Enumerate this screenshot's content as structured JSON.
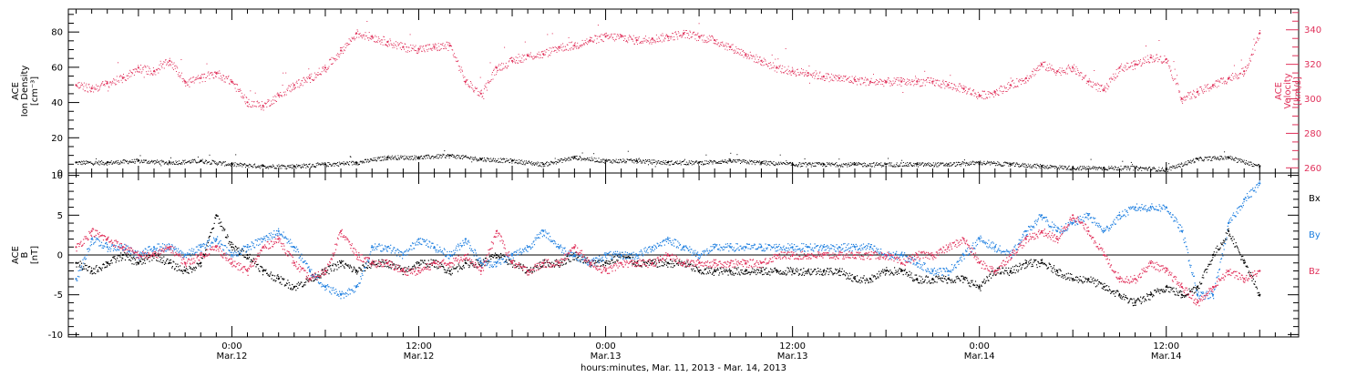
{
  "colors": {
    "axis": "#000000",
    "density": "#000000",
    "velocity": "#e0305a",
    "bx": "#000000",
    "by": "#1e7fe0",
    "bz": "#e0305a"
  },
  "time_axis": {
    "label": "hours:minutes, Mar. 11, 2013 - Mar. 14, 2013",
    "ticks": [
      {
        "hour": 24,
        "time": "0:00",
        "date": "Mar.12"
      },
      {
        "hour": 36,
        "time": "12:00",
        "date": "Mar.12"
      },
      {
        "hour": 48,
        "time": "0:00",
        "date": "Mar.13"
      },
      {
        "hour": 60,
        "time": "12:00",
        "date": "Mar.13"
      },
      {
        "hour": 72,
        "time": "0:00",
        "date": "Mar.14"
      },
      {
        "hour": 84,
        "time": "12:00",
        "date": "Mar.14"
      }
    ]
  },
  "chart_data": [
    {
      "type": "scatter",
      "panel": "top",
      "xlabel": "hours:minutes, Mar. 11, 2013 - Mar. 14, 2013",
      "xlim": [
        13.5,
        92.5
      ],
      "left_axis": {
        "label_lines": [
          "ACE",
          "Ion Density",
          "[cm⁻³]"
        ],
        "ylim": [
          0,
          93
        ],
        "ticks": [
          0,
          20,
          40,
          60,
          80
        ]
      },
      "right_axis": {
        "label_lines": [
          "ACE",
          "Velocity",
          "[km/s]"
        ],
        "ylim": [
          257,
          352
        ],
        "ticks": [
          260,
          280,
          300,
          320,
          340
        ]
      },
      "grid": false,
      "series": [
        {
          "name": "",
          "axis": "left",
          "key": "density",
          "x": [
            14,
            16,
            18,
            20,
            22,
            24,
            26,
            28,
            30,
            32,
            34,
            36,
            38,
            40,
            42,
            44,
            46,
            48,
            50,
            52,
            54,
            56,
            58,
            60,
            62,
            64,
            66,
            68,
            70,
            72,
            74,
            76,
            78,
            80,
            82,
            84,
            86,
            88,
            90
          ],
          "y": [
            6,
            6,
            7,
            6,
            7,
            5,
            4,
            4,
            5,
            6,
            9,
            9,
            10,
            8,
            7,
            5,
            9,
            7,
            7,
            6,
            6,
            7,
            6,
            5,
            5,
            5,
            5,
            5,
            5,
            6,
            5,
            4,
            3,
            3,
            3,
            2,
            8,
            9,
            4
          ]
        },
        {
          "name": "",
          "axis": "right",
          "key": "velocity",
          "x": [
            14,
            15,
            16,
            17,
            18,
            19,
            20,
            21,
            22,
            23,
            24,
            25,
            26,
            27,
            28,
            29,
            30,
            31,
            32,
            33,
            34,
            35,
            36,
            37,
            38,
            39,
            40,
            41,
            42,
            43,
            44,
            45,
            46,
            47,
            48,
            49,
            50,
            51,
            52,
            53,
            54,
            55,
            56,
            57,
            58,
            59,
            60,
            61,
            62,
            63,
            64,
            65,
            66,
            67,
            68,
            69,
            70,
            71,
            72,
            73,
            74,
            75,
            76,
            77,
            78,
            79,
            80,
            81,
            82,
            83,
            84,
            85,
            86,
            87,
            88,
            89,
            90
          ],
          "y": [
            308,
            306,
            309,
            312,
            318,
            316,
            322,
            310,
            312,
            315,
            310,
            298,
            296,
            302,
            308,
            312,
            318,
            328,
            338,
            336,
            333,
            330,
            329,
            330,
            331,
            310,
            303,
            318,
            322,
            325,
            326,
            330,
            331,
            334,
            336,
            336,
            334,
            335,
            336,
            338,
            336,
            334,
            330,
            326,
            322,
            318,
            316,
            315,
            313,
            312,
            311,
            310,
            310,
            310,
            310,
            310,
            308,
            306,
            302,
            304,
            308,
            312,
            320,
            316,
            318,
            310,
            305,
            318,
            320,
            324,
            323,
            300,
            304,
            308,
            312,
            316,
            338
          ]
        }
      ]
    },
    {
      "type": "scatter",
      "panel": "bottom",
      "xlabel": "hours:minutes, Mar. 11, 2013 - Mar. 14, 2013",
      "xlim": [
        13.5,
        92.5
      ],
      "yaxis": {
        "label_lines": [
          "ACE",
          "B",
          "[nT]"
        ],
        "ylim": [
          -10.3,
          10.3
        ],
        "ticks": [
          -10,
          -5,
          0,
          5,
          10
        ]
      },
      "zero_line": true,
      "grid": false,
      "legend": {
        "position": "right"
      },
      "series": [
        {
          "name": "Bx",
          "key": "bx",
          "x": [
            14,
            15,
            16,
            17,
            18,
            19,
            20,
            21,
            22,
            23,
            24,
            25,
            26,
            27,
            28,
            29,
            30,
            31,
            32,
            33,
            34,
            35,
            36,
            37,
            38,
            39,
            40,
            41,
            42,
            43,
            44,
            45,
            46,
            47,
            48,
            49,
            50,
            51,
            52,
            53,
            54,
            55,
            56,
            57,
            58,
            59,
            60,
            61,
            62,
            63,
            64,
            65,
            66,
            67,
            68,
            69,
            70,
            71,
            72,
            73,
            74,
            75,
            76,
            77,
            78,
            79,
            80,
            81,
            82,
            83,
            84,
            85,
            86,
            87,
            88,
            89,
            90
          ],
          "y": [
            -1,
            -2,
            -1,
            0,
            -1,
            0,
            -1,
            -2,
            -1,
            5,
            1,
            0,
            -2,
            -3,
            -4,
            -3,
            -2,
            -1,
            -2,
            -1,
            -1,
            -2,
            -1,
            -1,
            -2,
            -1,
            -1,
            0,
            -1,
            -2,
            -1,
            -1,
            0,
            -1,
            -1,
            0,
            -1,
            -1,
            -1,
            -1,
            -2,
            -2,
            -2,
            -2,
            -2,
            -2,
            -2,
            -2,
            -2,
            -2,
            -3,
            -3,
            -2,
            -2,
            -3,
            -3,
            -3,
            -3,
            -4,
            -2,
            -2,
            -1,
            -1,
            -2,
            -3,
            -3,
            -4,
            -5,
            -6,
            -5,
            -4,
            -5,
            -4,
            0,
            3,
            -1,
            -5
          ]
        },
        {
          "name": "By",
          "key": "by",
          "x": [
            14,
            15,
            16,
            17,
            18,
            19,
            20,
            21,
            22,
            23,
            24,
            25,
            26,
            27,
            28,
            29,
            30,
            31,
            32,
            33,
            34,
            35,
            36,
            37,
            38,
            39,
            40,
            41,
            42,
            43,
            44,
            45,
            46,
            47,
            48,
            49,
            50,
            51,
            52,
            53,
            54,
            55,
            56,
            57,
            58,
            59,
            60,
            61,
            62,
            63,
            64,
            65,
            66,
            67,
            68,
            69,
            70,
            71,
            72,
            73,
            74,
            75,
            76,
            77,
            78,
            79,
            80,
            81,
            82,
            83,
            84,
            85,
            86,
            87,
            88,
            89,
            90
          ],
          "y": [
            -3,
            2,
            1,
            1,
            0,
            1,
            1,
            0,
            1,
            2,
            0,
            1,
            2,
            3,
            1,
            -2,
            -4,
            -5,
            -4,
            1,
            1,
            0,
            2,
            1,
            0,
            2,
            -1,
            -1,
            0,
            1,
            3,
            1,
            0,
            -1,
            0,
            0,
            0,
            1,
            2,
            1,
            0,
            1,
            1,
            1,
            1,
            1,
            1,
            1,
            1,
            1,
            1,
            1,
            0,
            0,
            -1,
            -2,
            -2,
            0,
            2,
            1,
            0,
            3,
            5,
            3,
            4,
            5,
            3,
            5,
            6,
            6,
            6,
            3,
            -5,
            -5,
            4,
            7,
            9
          ]
        },
        {
          "name": "Bz",
          "key": "bz",
          "x": [
            14,
            15,
            16,
            17,
            18,
            19,
            20,
            21,
            22,
            23,
            24,
            25,
            26,
            27,
            28,
            29,
            30,
            31,
            32,
            33,
            34,
            35,
            36,
            37,
            38,
            39,
            40,
            41,
            42,
            43,
            44,
            45,
            46,
            47,
            48,
            49,
            50,
            51,
            52,
            53,
            54,
            55,
            56,
            57,
            58,
            59,
            60,
            61,
            62,
            63,
            64,
            65,
            66,
            67,
            68,
            69,
            70,
            71,
            72,
            73,
            74,
            75,
            76,
            77,
            78,
            79,
            80,
            81,
            82,
            83,
            84,
            85,
            86,
            87,
            88,
            89,
            90
          ],
          "y": [
            1,
            3,
            2,
            1,
            0,
            0,
            1,
            -1,
            0,
            1,
            -1,
            -2,
            1,
            2,
            -1,
            -3,
            -2,
            3,
            0,
            -1,
            -1,
            -2,
            -2,
            -1,
            -1,
            0,
            -2,
            3,
            -1,
            -2,
            -1,
            -1,
            1,
            -1,
            -2,
            -1,
            -1,
            -1,
            0,
            -1,
            -1,
            -1,
            -1,
            -1,
            -1,
            0,
            0,
            0,
            0,
            0,
            0,
            0,
            0,
            -1,
            0,
            0,
            1,
            2,
            -1,
            -2,
            0,
            2,
            3,
            2,
            5,
            3,
            0,
            -3,
            -3,
            -1,
            -2,
            -4,
            -6,
            -4,
            -2,
            -3,
            -2
          ]
        }
      ]
    }
  ]
}
